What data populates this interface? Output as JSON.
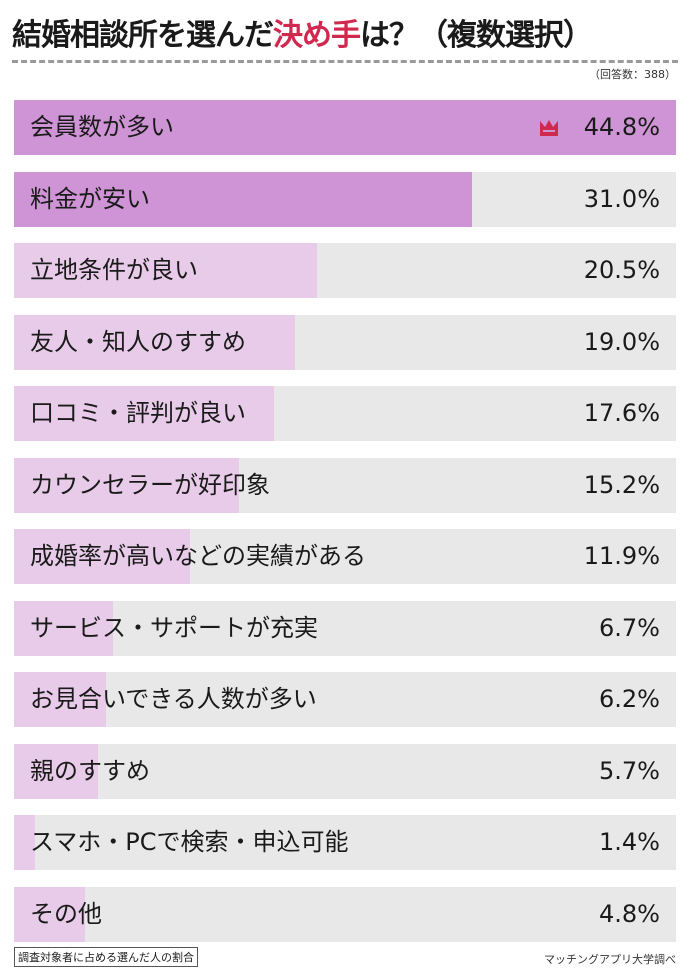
{
  "header": {
    "title_pre": "結婚相談所を選んだ",
    "title_accent": "決め手",
    "title_post": "は？（複数選択）",
    "respondents": "（回答数：388）"
  },
  "colors": {
    "top_fill": "#cf94d6",
    "other_fill": "#e8cbe9",
    "track": "#e8e8e8",
    "accent": "#d0284f"
  },
  "chart_data": {
    "type": "bar",
    "orientation": "horizontal",
    "title": "結婚相談所を選んだ決め手は？（複数選択）",
    "categories": [
      "会員数が多い",
      "料金が安い",
      "立地条件が良い",
      "友人・知人のすすめ",
      "口コミ・評判が良い",
      "カウンセラーが好印象",
      "成婚率が高いなどの実績がある",
      "サービス・サポートが充実",
      "お見合いできる人数が多い",
      "親のすすめ",
      "スマホ・PCで検索・申込可能",
      "その他"
    ],
    "values": [
      44.8,
      31.0,
      20.5,
      19.0,
      17.6,
      15.2,
      11.9,
      6.7,
      6.2,
      5.7,
      1.4,
      4.8
    ],
    "value_labels": [
      "44.8%",
      "31.0%",
      "20.5%",
      "19.0%",
      "17.6%",
      "15.2%",
      "11.9%",
      "6.7%",
      "6.2%",
      "5.7%",
      "1.4%",
      "4.8%"
    ],
    "xlabel": "調査対象者に占める選んだ人の割合",
    "ylabel": "",
    "xlim": [
      0,
      44.8
    ],
    "grid": false,
    "legend": null
  },
  "footer": {
    "note": "調査対象者に占める選んだ人の割合",
    "source": "マッチングアプリ大学調べ"
  }
}
